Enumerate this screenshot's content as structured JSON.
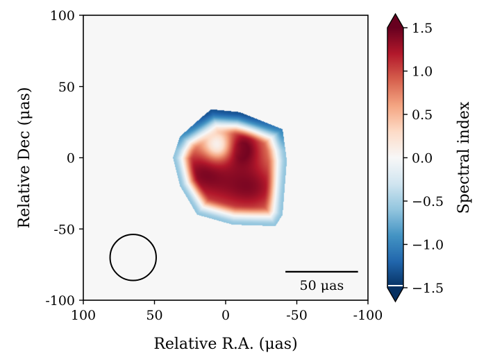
{
  "chart_data": {
    "type": "heatmap",
    "xlabel": "Relative R.A. (μas)",
    "ylabel": "Relative Dec (μas)",
    "xlim": [
      100,
      -100
    ],
    "ylim": [
      -100,
      100
    ],
    "x_ticks": [
      {
        "value": 100,
        "label": "100"
      },
      {
        "value": 50,
        "label": "50"
      },
      {
        "value": 0,
        "label": "0"
      },
      {
        "value": -50,
        "label": "-50"
      },
      {
        "value": -100,
        "label": "-100"
      }
    ],
    "y_ticks": [
      {
        "value": 100,
        "label": "100"
      },
      {
        "value": 50,
        "label": "50"
      },
      {
        "value": 0,
        "label": "0"
      },
      {
        "value": -50,
        "label": "-50"
      },
      {
        "value": -100,
        "label": "-100"
      }
    ],
    "colorbar": {
      "label": "Spectral index",
      "range": [
        -1.5,
        1.5
      ],
      "colormap": "RdBu_r",
      "extend": "both",
      "ticks": [
        {
          "value": 1.5,
          "label": "1.5"
        },
        {
          "value": 1.0,
          "label": "1.0"
        },
        {
          "value": 0.5,
          "label": "0.5"
        },
        {
          "value": 0.0,
          "label": "0.0"
        },
        {
          "value": -0.5,
          "label": "−0.5"
        },
        {
          "value": -1.0,
          "label": "−1.0"
        },
        {
          "value": -1.5,
          "label": "−1.5"
        }
      ]
    },
    "background_value": 0.0,
    "source": {
      "center": [
        5,
        -8
      ],
      "boundary": [
        [
          10,
          34
        ],
        [
          -10,
          32
        ],
        [
          -40,
          20
        ],
        [
          -43,
          -2
        ],
        [
          -40,
          -40
        ],
        [
          -35,
          -48
        ],
        [
          -5,
          -47
        ],
        [
          20,
          -40
        ],
        [
          32,
          -20
        ],
        [
          37,
          0
        ],
        [
          32,
          15
        ],
        [
          15,
          30
        ]
      ],
      "peak_regions": [
        {
          "center": [
            -12,
            8
          ],
          "sigma": [
            10,
            10
          ],
          "value": 1.4
        },
        {
          "center": [
            18,
            -8
          ],
          "sigma": [
            14,
            12
          ],
          "value": 1.0
        },
        {
          "center": [
            -2,
            -22
          ],
          "sigma": [
            22,
            14
          ],
          "value": 0.85
        },
        {
          "center": [
            -22,
            -20
          ],
          "sigma": [
            14,
            14
          ],
          "value": 0.75
        }
      ],
      "interior_dip": {
        "center": [
          5,
          8
        ],
        "sigma": [
          7,
          7
        ],
        "value": -0.45
      },
      "edge_values": {
        "north": -1.3,
        "other": -0.6
      }
    },
    "beam": {
      "center": [
        65,
        -70
      ],
      "radius": 12
    },
    "scale_bar": {
      "x_start": -42,
      "x_end": -93,
      "y": -80,
      "label": "50 μas"
    },
    "grid": false
  }
}
